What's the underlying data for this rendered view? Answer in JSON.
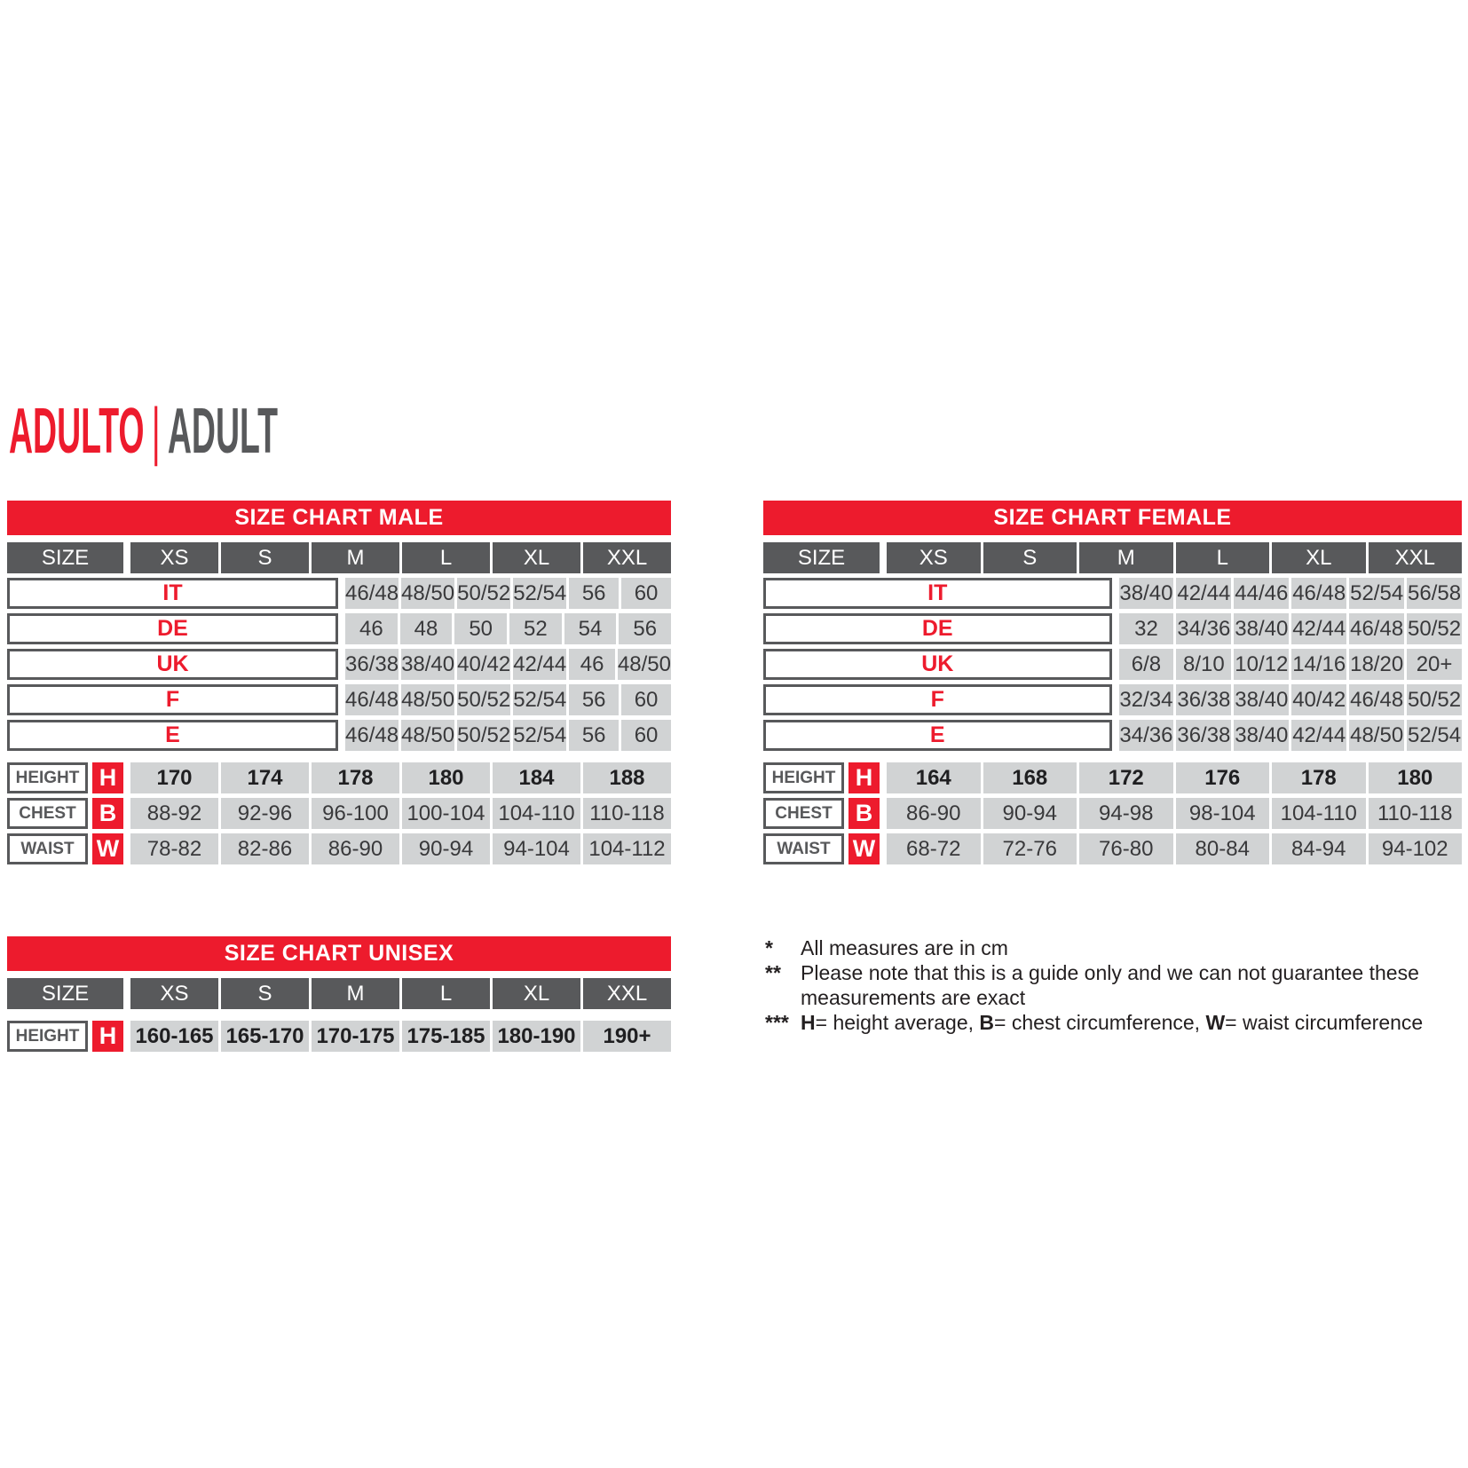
{
  "title": {
    "italian": "ADULTO",
    "separator": "|",
    "english": "ADULT"
  },
  "colors": {
    "accent_red": "#ed1b2d",
    "header_gray": "#58595b",
    "cell_gray": "#d1d3d4",
    "value_text": "#39393b",
    "note_text": "#231f20"
  },
  "tables": [
    {
      "id": "male",
      "title": "SIZE CHART MALE",
      "size_label": "SIZE",
      "columns": [
        "XS",
        "S",
        "M",
        "L",
        "XL",
        "XXL"
      ],
      "country_rows": [
        {
          "label": "IT",
          "values": [
            "46/48",
            "48/50",
            "50/52",
            "52/54",
            "56",
            "60"
          ]
        },
        {
          "label": "DE",
          "values": [
            "46",
            "48",
            "50",
            "52",
            "54",
            "56"
          ]
        },
        {
          "label": "UK",
          "values": [
            "36/38",
            "38/40",
            "40/42",
            "42/44",
            "46",
            "48/50"
          ]
        },
        {
          "label": "F",
          "values": [
            "46/48",
            "48/50",
            "50/52",
            "52/54",
            "56",
            "60"
          ]
        },
        {
          "label": "E",
          "values": [
            "46/48",
            "48/50",
            "50/52",
            "52/54",
            "56",
            "60"
          ]
        }
      ],
      "measure_rows": [
        {
          "label": "HEIGHT",
          "letter": "H",
          "bold": true,
          "values": [
            "170",
            "174",
            "178",
            "180",
            "184",
            "188"
          ]
        },
        {
          "label": "CHEST",
          "letter": "B",
          "bold": false,
          "values": [
            "88-92",
            "92-96",
            "96-100",
            "100-104",
            "104-110",
            "110-118"
          ]
        },
        {
          "label": "WAIST",
          "letter": "W",
          "bold": false,
          "values": [
            "78-82",
            "82-86",
            "86-90",
            "90-94",
            "94-104",
            "104-112"
          ]
        }
      ]
    },
    {
      "id": "female",
      "title": "SIZE CHART FEMALE",
      "size_label": "SIZE",
      "columns": [
        "XS",
        "S",
        "M",
        "L",
        "XL",
        "XXL"
      ],
      "country_rows": [
        {
          "label": "IT",
          "values": [
            "38/40",
            "42/44",
            "44/46",
            "46/48",
            "52/54",
            "56/58"
          ]
        },
        {
          "label": "DE",
          "values": [
            "32",
            "34/36",
            "38/40",
            "42/44",
            "46/48",
            "50/52"
          ]
        },
        {
          "label": "UK",
          "values": [
            "6/8",
            "8/10",
            "10/12",
            "14/16",
            "18/20",
            "20+"
          ]
        },
        {
          "label": "F",
          "values": [
            "32/34",
            "36/38",
            "38/40",
            "40/42",
            "46/48",
            "50/52"
          ]
        },
        {
          "label": "E",
          "values": [
            "34/36",
            "36/38",
            "38/40",
            "42/44",
            "48/50",
            "52/54"
          ]
        }
      ],
      "measure_rows": [
        {
          "label": "HEIGHT",
          "letter": "H",
          "bold": true,
          "values": [
            "164",
            "168",
            "172",
            "176",
            "178",
            "180"
          ]
        },
        {
          "label": "CHEST",
          "letter": "B",
          "bold": false,
          "values": [
            "86-90",
            "90-94",
            "94-98",
            "98-104",
            "104-110",
            "110-118"
          ]
        },
        {
          "label": "WAIST",
          "letter": "W",
          "bold": false,
          "values": [
            "68-72",
            "72-76",
            "76-80",
            "80-84",
            "84-94",
            "94-102"
          ]
        }
      ]
    },
    {
      "id": "unisex",
      "title": "SIZE CHART UNISEX",
      "size_label": "SIZE",
      "columns": [
        "XS",
        "S",
        "M",
        "L",
        "XL",
        "XXL"
      ],
      "country_rows": [],
      "measure_rows": [
        {
          "label": "HEIGHT",
          "letter": "H",
          "bold": true,
          "values": [
            "160-165",
            "165-170",
            "170-175",
            "175-185",
            "180-190",
            "190+"
          ]
        }
      ]
    }
  ],
  "notes": [
    {
      "marker": "*",
      "segments": [
        {
          "text": "All measures are in cm"
        }
      ]
    },
    {
      "marker": "**",
      "segments": [
        {
          "text": "Please note that this is a guide only and we can not guarantee these measurements are exact"
        }
      ]
    },
    {
      "marker": "***",
      "segments": [
        {
          "text": "H",
          "bold": true
        },
        {
          "text": "= height average, "
        },
        {
          "text": "B",
          "bold": true
        },
        {
          "text": "= chest circumference, "
        },
        {
          "text": "W",
          "bold": true
        },
        {
          "text": "= waist circumference"
        }
      ]
    }
  ]
}
